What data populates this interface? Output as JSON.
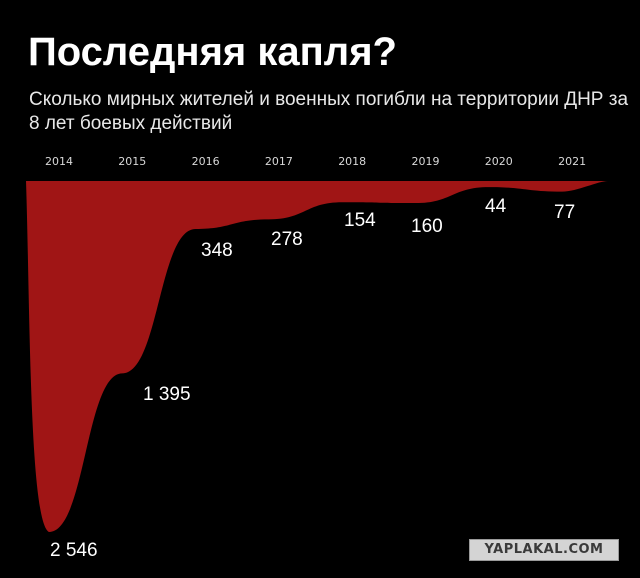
{
  "header": {
    "title": "Последняя капля?",
    "subtitle": "Сколько мирных жителей и военных погибли на территории ДНР за 8 лет боевых действий"
  },
  "watermark": {
    "text": "YAPLAKAL.COM"
  },
  "colors": {
    "fill": "#a01515",
    "background": "#000000",
    "text": "#ffffff"
  },
  "chart_data": {
    "type": "area",
    "orientation": "inverted",
    "title": "Последняя капля?",
    "subtitle": "Сколько мирных жителей и военных погибли на территории ДНР за 8 лет боевых действий",
    "categories": [
      "2014",
      "2015",
      "2016",
      "2017",
      "2018",
      "2019",
      "2020",
      "2021"
    ],
    "values": [
      2546,
      1395,
      348,
      278,
      154,
      160,
      44,
      77
    ],
    "value_labels": [
      "2 546",
      "1 395",
      "348",
      "278",
      "154",
      "160",
      "44",
      "77"
    ],
    "ylim": [
      0,
      2546
    ],
    "grid": false,
    "legend": "none"
  }
}
